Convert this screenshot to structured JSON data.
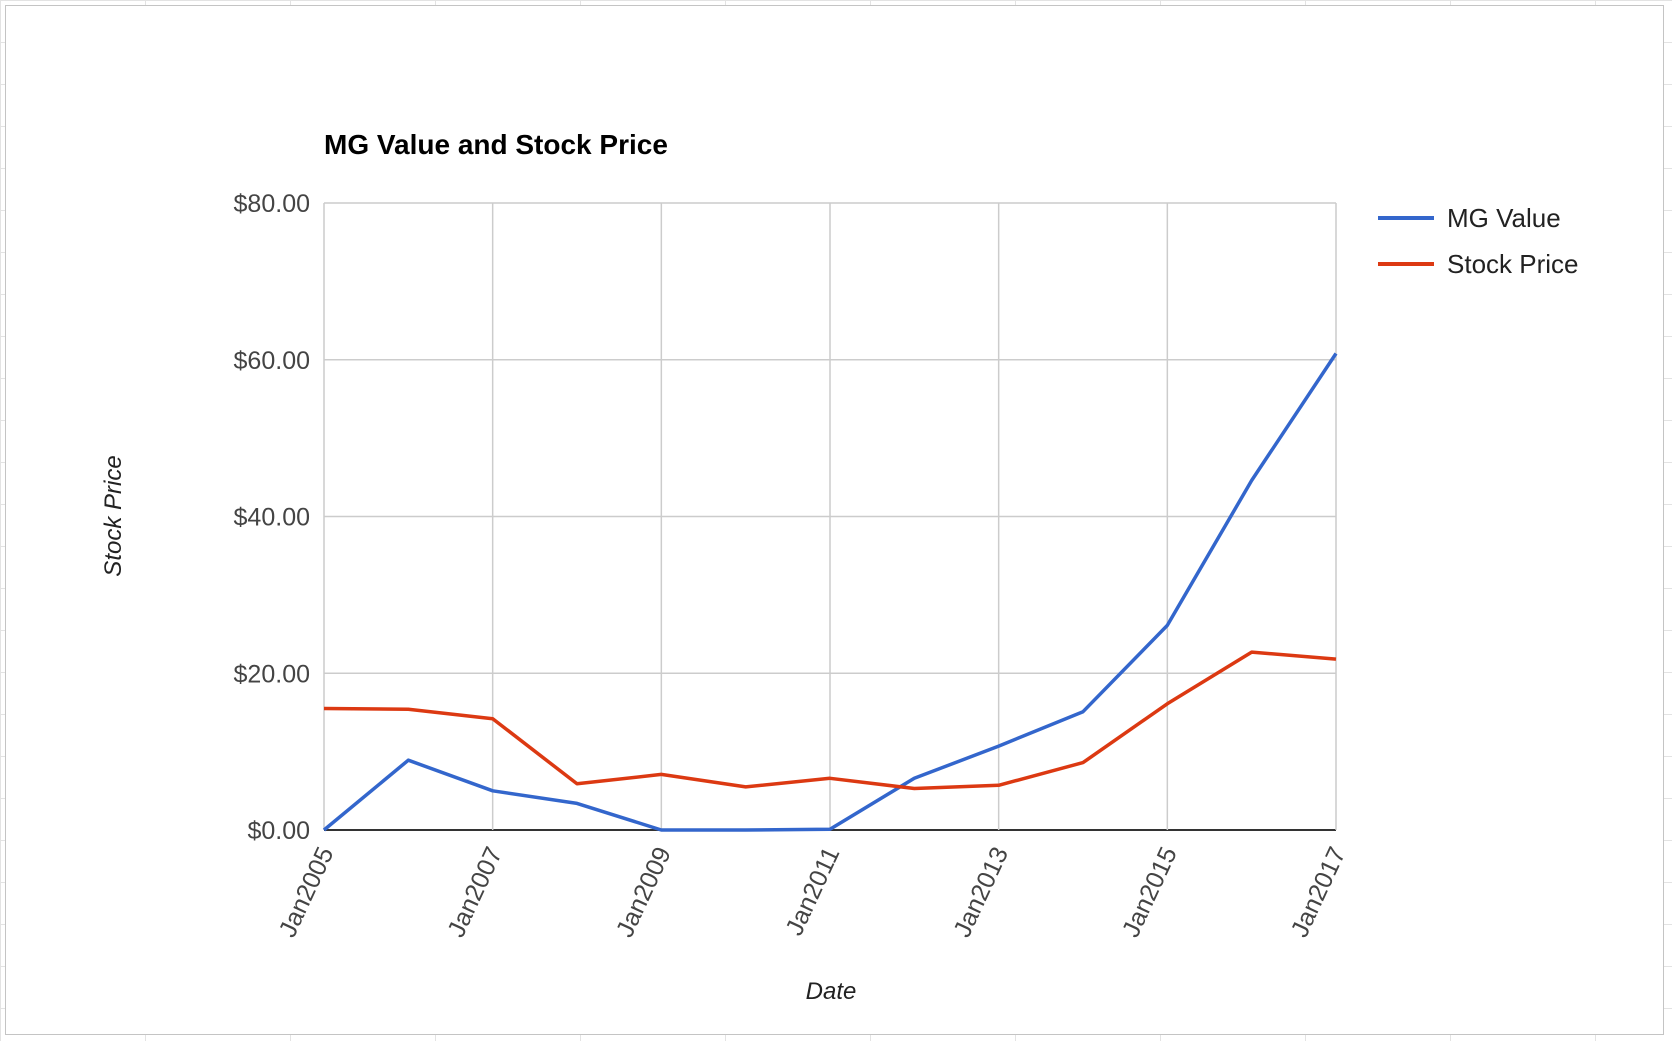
{
  "chart_data": {
    "type": "line",
    "title": "MG Value and Stock Price",
    "xlabel": "Date",
    "ylabel": "Stock Price",
    "x": [
      "2005-01",
      "2006-01",
      "2007-01",
      "2008-01",
      "2009-01",
      "2010-01",
      "2011-01",
      "2012-01",
      "2013-01",
      "2014-01",
      "2015-01",
      "2016-01",
      "2017-01"
    ],
    "x_ticks": [
      "2005-01",
      "2007-01",
      "2009-01",
      "2011-01",
      "2013-01",
      "2015-01",
      "2017-01"
    ],
    "x_tick_labels": [
      "Jan2005",
      "Jan2007",
      "Jan2009",
      "Jan2011",
      "Jan2013",
      "Jan2015",
      "Jan2017"
    ],
    "y_tick_values": [
      0,
      20,
      40,
      60,
      80
    ],
    "y_tick_labels": [
      "$0.00",
      "$20.00",
      "$40.00",
      "$60.00",
      "$80.00"
    ],
    "ylim": [
      0,
      80
    ],
    "grid": true,
    "legend": "right",
    "series": [
      {
        "name": "MG Value",
        "color": "#3366cc",
        "values": [
          0.0,
          8.9,
          5.0,
          3.4,
          0.0,
          0.0,
          0.1,
          6.6,
          10.7,
          15.1,
          26.1,
          44.6,
          60.8
        ]
      },
      {
        "name": "Stock Price",
        "color": "#dc3912",
        "values": [
          15.5,
          15.4,
          14.2,
          5.9,
          7.1,
          5.5,
          6.6,
          5.3,
          5.7,
          8.6,
          16.1,
          22.7,
          21.8
        ]
      }
    ]
  }
}
